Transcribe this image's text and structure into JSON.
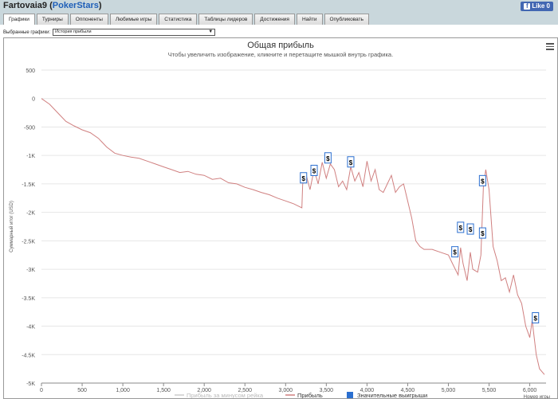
{
  "header": {
    "player": "Fartovaia9",
    "site": "PokerStars",
    "like_label": "Like 0"
  },
  "tabs": [
    "Графики",
    "Турниры",
    "Оппоненты",
    "Любимые игры",
    "Статистика",
    "Таблицы лидеров",
    "Достижения",
    "Найти",
    "Опубликовать"
  ],
  "selector": {
    "label": "Выбранные графики:",
    "value": "История прибыли"
  },
  "chart_data": {
    "type": "line",
    "title": "Общая прибыль",
    "subtitle": "Чтобы увеличить изображение, кликните и перетащите мышкой внутрь графика.",
    "ylabel": "Суммарный итог (USD)",
    "xlabel": "Номер игры",
    "xlim": [
      0,
      6200
    ],
    "ylim": [
      -5000,
      500
    ],
    "x_ticks": [
      "0",
      "500",
      "1,000",
      "1,500",
      "2,000",
      "2,500",
      "3,000",
      "3,500",
      "4,000",
      "4,500",
      "5,000",
      "5,500",
      "6,000"
    ],
    "y_ticks": [
      "500",
      "0",
      "-500",
      "-1K",
      "-1.5K",
      "-2K",
      "-2.5K",
      "-3K",
      "-3.5K",
      "-4K",
      "-4.5K",
      "-5K"
    ],
    "legend": [
      "Прибыль за минусом рейка",
      "Прибыль",
      "Значительные выигрыши"
    ],
    "legend_colors": [
      "#cccccc",
      "#d08080",
      "#2b6fd0"
    ],
    "series": [
      {
        "name": "Прибыль",
        "color": "#d08080",
        "points": [
          [
            0,
            0
          ],
          [
            100,
            -100
          ],
          [
            200,
            -250
          ],
          [
            300,
            -400
          ],
          [
            400,
            -480
          ],
          [
            500,
            -550
          ],
          [
            600,
            -600
          ],
          [
            700,
            -700
          ],
          [
            800,
            -850
          ],
          [
            900,
            -960
          ],
          [
            1000,
            -1000
          ],
          [
            1100,
            -1030
          ],
          [
            1200,
            -1050
          ],
          [
            1300,
            -1100
          ],
          [
            1400,
            -1150
          ],
          [
            1500,
            -1200
          ],
          [
            1600,
            -1250
          ],
          [
            1700,
            -1300
          ],
          [
            1800,
            -1280
          ],
          [
            1900,
            -1330
          ],
          [
            2000,
            -1350
          ],
          [
            2100,
            -1420
          ],
          [
            2200,
            -1400
          ],
          [
            2300,
            -1480
          ],
          [
            2400,
            -1500
          ],
          [
            2500,
            -1560
          ],
          [
            2600,
            -1600
          ],
          [
            2700,
            -1650
          ],
          [
            2800,
            -1690
          ],
          [
            2900,
            -1750
          ],
          [
            3000,
            -1800
          ],
          [
            3100,
            -1850
          ],
          [
            3200,
            -1920
          ],
          [
            3210,
            -1500
          ],
          [
            3260,
            -1380
          ],
          [
            3300,
            -1600
          ],
          [
            3350,
            -1250
          ],
          [
            3400,
            -1500
          ],
          [
            3450,
            -1120
          ],
          [
            3500,
            -1400
          ],
          [
            3550,
            -1150
          ],
          [
            3600,
            -1250
          ],
          [
            3650,
            -1550
          ],
          [
            3700,
            -1450
          ],
          [
            3750,
            -1600
          ],
          [
            3800,
            -1200
          ],
          [
            3850,
            -1450
          ],
          [
            3900,
            -1300
          ],
          [
            3950,
            -1550
          ],
          [
            4000,
            -1100
          ],
          [
            4050,
            -1450
          ],
          [
            4100,
            -1250
          ],
          [
            4150,
            -1600
          ],
          [
            4200,
            -1650
          ],
          [
            4250,
            -1500
          ],
          [
            4300,
            -1350
          ],
          [
            4350,
            -1650
          ],
          [
            4400,
            -1550
          ],
          [
            4450,
            -1500
          ],
          [
            4500,
            -1800
          ],
          [
            4550,
            -2100
          ],
          [
            4600,
            -2500
          ],
          [
            4650,
            -2600
          ],
          [
            4700,
            -2650
          ],
          [
            4800,
            -2650
          ],
          [
            4900,
            -2700
          ],
          [
            5000,
            -2750
          ],
          [
            5050,
            -2900
          ],
          [
            5120,
            -3100
          ],
          [
            5150,
            -2620
          ],
          [
            5180,
            -2900
          ],
          [
            5230,
            -3200
          ],
          [
            5270,
            -2700
          ],
          [
            5300,
            -3000
          ],
          [
            5360,
            -3050
          ],
          [
            5400,
            -2750
          ],
          [
            5430,
            -1550
          ],
          [
            5460,
            -1250
          ],
          [
            5500,
            -1600
          ],
          [
            5550,
            -2600
          ],
          [
            5600,
            -2850
          ],
          [
            5650,
            -3200
          ],
          [
            5700,
            -3150
          ],
          [
            5750,
            -3400
          ],
          [
            5800,
            -3100
          ],
          [
            5850,
            -3450
          ],
          [
            5900,
            -3600
          ],
          [
            5950,
            -4000
          ],
          [
            6000,
            -4200
          ],
          [
            6030,
            -3900
          ],
          [
            6080,
            -4500
          ],
          [
            6120,
            -4750
          ],
          [
            6180,
            -4850
          ]
        ]
      },
      {
        "name": "Значительные выигрыши",
        "color": "#2b6fd0",
        "markers": [
          [
            3220,
            -1400
          ],
          [
            3350,
            -1270
          ],
          [
            3520,
            -1050
          ],
          [
            3800,
            -1120
          ],
          [
            5080,
            -2700
          ],
          [
            5150,
            -2270
          ],
          [
            5270,
            -2300
          ],
          [
            5420,
            -1450
          ],
          [
            5420,
            -2370
          ],
          [
            6070,
            -3860
          ]
        ]
      }
    ]
  }
}
